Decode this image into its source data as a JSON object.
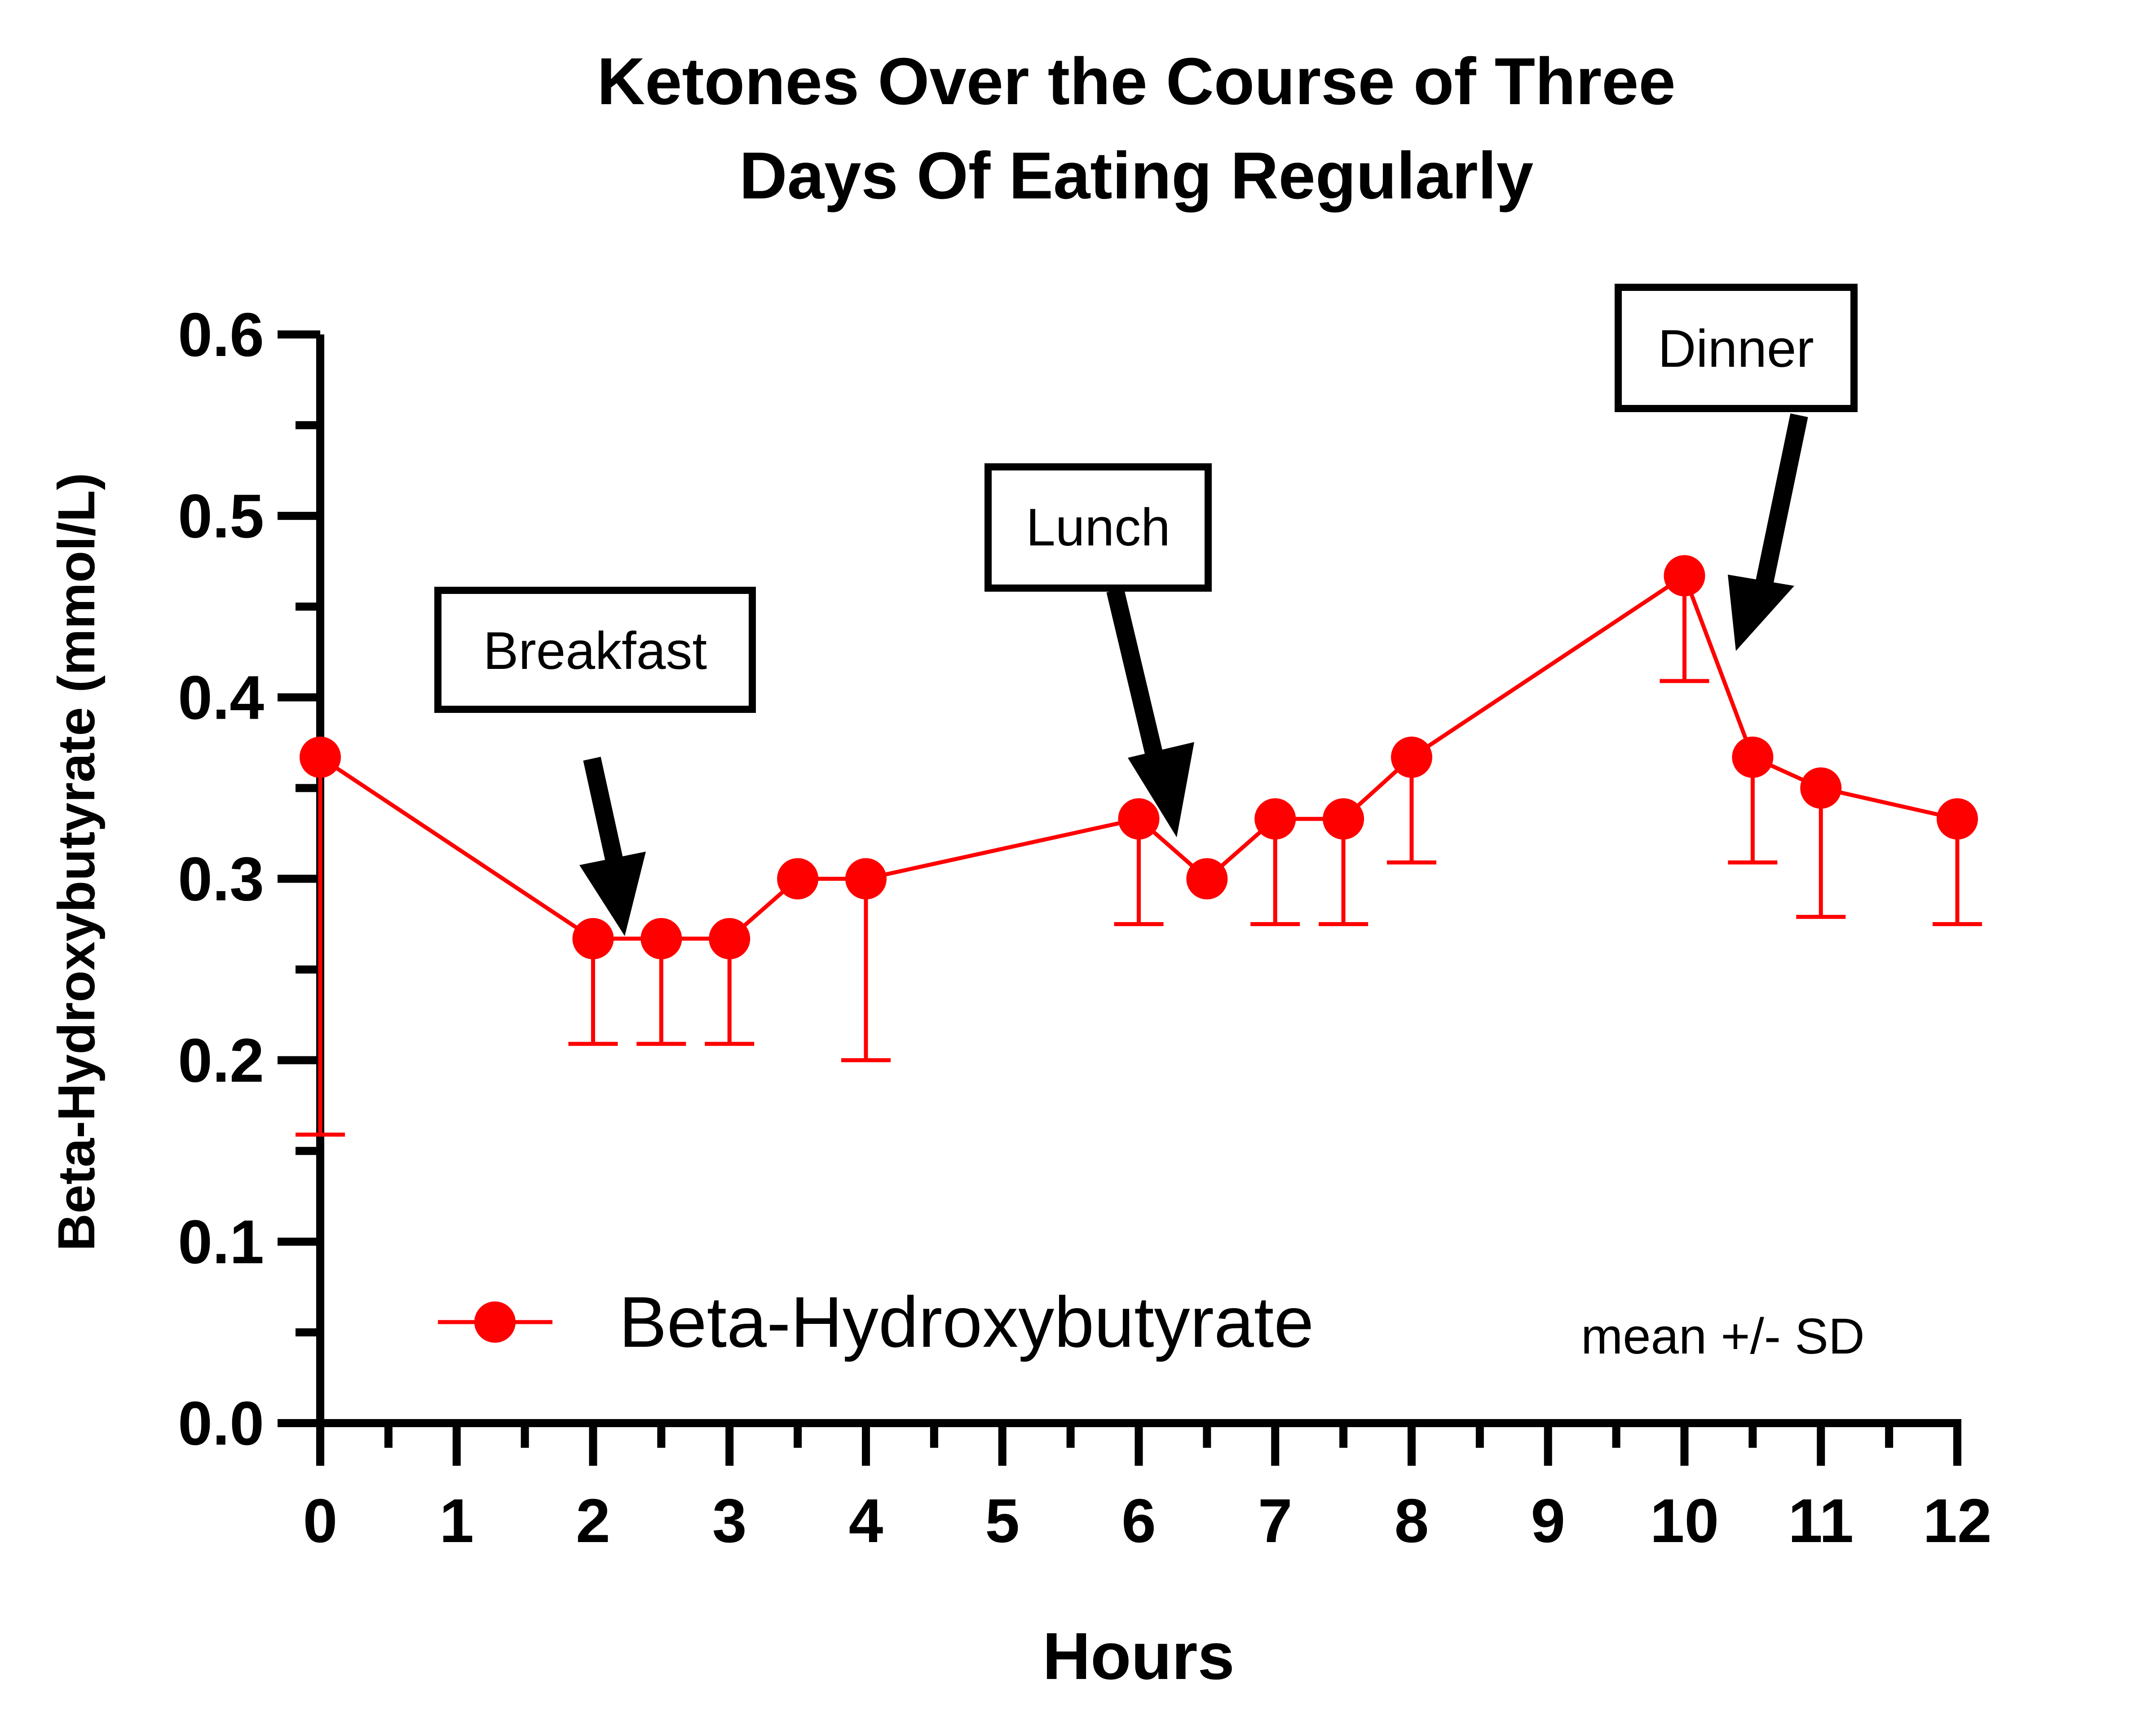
{
  "chart_data": {
    "type": "line",
    "title": [
      "Ketones Over the Course of Three",
      "Days Of Eating Regularly"
    ],
    "xlabel": "Hours",
    "ylabel": "Beta-Hydroxybutyrate (mmol/L)",
    "xlim": [
      0,
      12
    ],
    "ylim": [
      0,
      0.6
    ],
    "x_ticks": [
      "0",
      "1",
      "2",
      "3",
      "4",
      "5",
      "6",
      "7",
      "8",
      "9",
      "10",
      "11",
      "12"
    ],
    "y_ticks": [
      "0.0",
      "0.1",
      "0.2",
      "0.3",
      "0.4",
      "0.5",
      "0.6"
    ],
    "grid": false,
    "legend": "bottom-left",
    "error_bars": "below",
    "series": [
      {
        "name": "Beta-Hydroxybutyrate",
        "color": "#ff0000",
        "x": [
          0,
          2,
          2.5,
          3,
          3.5,
          4,
          6,
          6.5,
          7,
          7.5,
          8,
          10,
          10.5,
          11,
          12
        ],
        "y": [
          0.367,
          0.267,
          0.267,
          0.267,
          0.3,
          0.3,
          0.333,
          0.3,
          0.333,
          0.333,
          0.367,
          0.467,
          0.367,
          0.35,
          0.333
        ],
        "sd": [
          0.208,
          0.058,
          0.058,
          0.058,
          0,
          0.1,
          0.058,
          0,
          0.058,
          0.058,
          0.058,
          0.058,
          0.058,
          0.071,
          0.058
        ]
      }
    ],
    "annotations": [
      {
        "label": "Breakfast",
        "points_to_x": 2.2
      },
      {
        "label": "Lunch",
        "points_to_x": 6.25
      },
      {
        "label": "Dinner",
        "points_to_x": 10.35
      }
    ],
    "note": "mean +/- SD"
  }
}
